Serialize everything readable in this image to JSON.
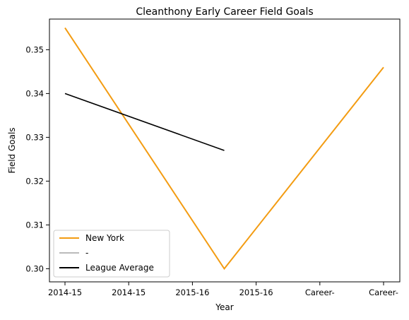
{
  "chart_data": {
    "type": "line",
    "title": "Cleanthony Early Career Field Goals",
    "xlabel": "Year",
    "ylabel": "Field Goals",
    "x_categories": [
      "2014-15",
      "2014-15",
      "2015-16",
      "2015-16",
      "Career-",
      "Career-"
    ],
    "ylim": [
      0.297,
      0.357
    ],
    "yticks": [
      "0.30",
      "0.31",
      "0.32",
      "0.33",
      "0.34",
      "0.35"
    ],
    "ytick_values": [
      0.3,
      0.31,
      0.32,
      0.33,
      0.34,
      0.35
    ],
    "grid": false,
    "legend_position": "lower-left",
    "series": [
      {
        "name": "New York",
        "color": "#f39c12",
        "points": [
          {
            "x_index": 0,
            "y": 0.355
          },
          {
            "x_index": 2.5,
            "y": 0.3
          },
          {
            "x_index": 5,
            "y": 0.346
          }
        ]
      },
      {
        "name": "-",
        "color": "#bbbbbb",
        "points": []
      },
      {
        "name": "League Average",
        "color": "#000000",
        "points": [
          {
            "x_index": 0,
            "y": 0.34
          },
          {
            "x_index": 2.5,
            "y": 0.327
          }
        ]
      }
    ]
  }
}
